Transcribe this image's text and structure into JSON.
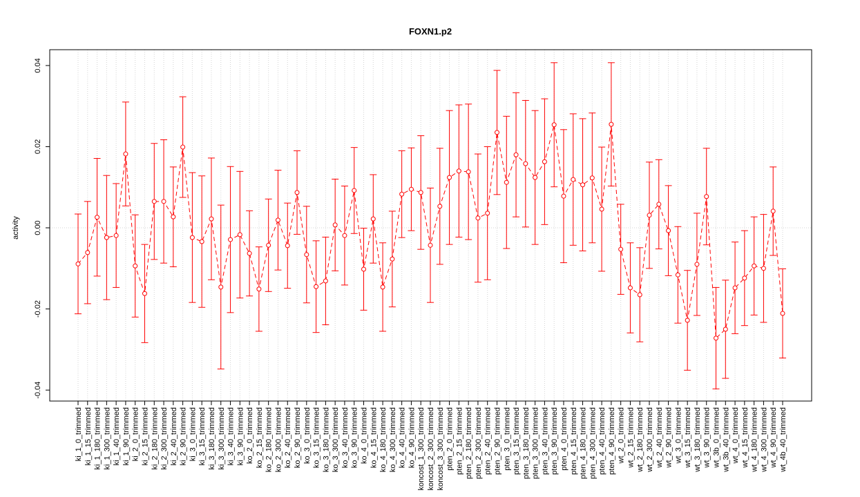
{
  "chart_data": {
    "type": "line",
    "title": "FOXN1.p2",
    "y_label": "activity",
    "categories": [
      "ki_1_0_trimmed",
      "ki_1_15_trimmed",
      "ki_1_180_trimmed",
      "ki_1_300_trimmed",
      "ki_1_40_trimmed",
      "ki_1_90_trimmed",
      "ki_2_0_trimmed",
      "ki_2_15_trimmed",
      "ki_2_180_trimmed",
      "ki_2_300_trimmed",
      "ki_2_40_trimmed",
      "ki_2_90_trimmed",
      "ki_3_0_trimmed",
      "ki_3_15_trimmed",
      "ki_3_180_trimmed",
      "ki_3_300_trimmed",
      "ki_3_40_trimmed",
      "ki_3_90_trimmed",
      "ko_2_0_trimmed",
      "ko_2_15_trimmed",
      "ko_2_180_trimmed",
      "ko_2_300_trimmed",
      "ko_2_40_trimmed",
      "ko_2_90_trimmed",
      "ko_3_0_trimmed",
      "ko_3_15_trimmed",
      "ko_3_180_trimmed",
      "ko_3_300_trimmed",
      "ko_3_40_trimmed",
      "ko_3_90_trimmed",
      "ko_4_0_trimmed",
      "ko_4_15_trimmed",
      "ko_4_180_trimmed",
      "ko_4_300_trimmed",
      "ko_4_40_trimmed",
      "ko_4_90_trimmed",
      "koncost_1_300_trimmed",
      "koncost_2_300_trimmed",
      "koncost_3_300_trimmed",
      "pten_2_0_trimmed",
      "pten_2_15_trimmed",
      "pten_2_180_trimmed",
      "pten_2_300_trimmed",
      "pten_2_40_trimmed",
      "pten_2_90_trimmed",
      "pten_3_0_trimmed",
      "pten_3_15_trimmed",
      "pten_3_180_trimmed",
      "pten_3_300_trimmed",
      "pten_3_40_trimmed",
      "pten_3_90_trimmed",
      "pten_4_0_trimmed",
      "pten_4_15_trimmed",
      "pten_4_180_trimmed",
      "pten_4_300_trimmed",
      "pten_4_40_trimmed",
      "pten_4_90_trimmed",
      "wt_2_0_trimmed",
      "wt_2_15_trimmed",
      "wt_2_180_trimmed",
      "wt_2_300_trimmed",
      "wt_2_40_trimmed",
      "wt_2_90_trimmed",
      "wt_3_0_trimmed",
      "wt_3_15_trimmed",
      "wt_3_180_trimmed",
      "wt_3_90_trimmed",
      "wt_3b_0_trimmed",
      "wt_3b_40_trimmed",
      "wt_4_0_trimmed",
      "wt_4_15_trimmed",
      "wt_4_180_trimmed",
      "wt_4_300_trimmed",
      "wt_4_90_trimmed",
      "wt_4b_40_trimmed"
    ],
    "series": [
      {
        "color": "#ff0000",
        "values": [
          -0.0089,
          -0.0061,
          0.0026,
          -0.0024,
          -0.0019,
          0.0182,
          -0.0094,
          -0.0162,
          0.0065,
          0.0065,
          0.0027,
          0.0199,
          -0.0024,
          -0.0034,
          0.0022,
          -0.0146,
          -0.0029,
          -0.0017,
          -0.0063,
          -0.0151,
          -0.0043,
          0.0019,
          -0.0044,
          0.0087,
          -0.0066,
          -0.0145,
          -0.0131,
          0.0007,
          -0.0019,
          0.0092,
          -0.0102,
          0.0022,
          -0.0146,
          -0.0077,
          0.0083,
          0.0095,
          0.0087,
          -0.0043,
          0.0053,
          0.0124,
          0.014,
          0.0138,
          0.0024,
          0.0036,
          0.0235,
          0.0112,
          0.018,
          0.0158,
          0.0124,
          0.0163,
          0.0254,
          0.0078,
          0.0119,
          0.0106,
          0.0123,
          0.0046,
          0.0255,
          -0.0053,
          -0.0148,
          -0.0165,
          0.0031,
          0.0058,
          -0.0007,
          -0.0116,
          -0.0228,
          -0.009,
          0.0077,
          -0.0272,
          -0.025,
          -0.0148,
          -0.0124,
          -0.0094,
          -0.01,
          0.0041,
          -0.0211
        ],
        "errors": [
          0.0123,
          0.0126,
          0.0145,
          0.0153,
          0.0128,
          0.0128,
          0.0126,
          0.0121,
          0.0143,
          0.0152,
          0.0123,
          0.0124,
          0.016,
          0.0162,
          0.015,
          0.0202,
          0.018,
          0.0156,
          0.0105,
          0.0104,
          0.0114,
          0.0123,
          0.0105,
          0.0103,
          0.0119,
          0.0113,
          0.0108,
          0.0113,
          0.0122,
          0.0106,
          0.0101,
          0.0109,
          0.0109,
          0.0118,
          0.0107,
          0.0102,
          0.014,
          0.0141,
          0.0143,
          0.0165,
          0.0163,
          0.0167,
          0.0158,
          0.0164,
          0.0153,
          0.0163,
          0.0153,
          0.0156,
          0.0165,
          0.0155,
          0.0153,
          0.0164,
          0.0162,
          0.0163,
          0.016,
          0.0153,
          0.0152,
          0.0111,
          0.0111,
          0.0116,
          0.0131,
          0.011,
          0.0111,
          0.0119,
          0.0123,
          0.0126,
          0.0119,
          0.0125,
          0.0121,
          0.0113,
          0.0117,
          0.0121,
          0.0133,
          0.0109,
          0.011
        ]
      }
    ],
    "ylim": [
      -0.0427,
      0.0439
    ],
    "yticks": [
      -0.04,
      -0.02,
      {
        "value": 0,
        "label": "0.00"
      },
      0.02,
      0.04
    ],
    "grid": true
  }
}
